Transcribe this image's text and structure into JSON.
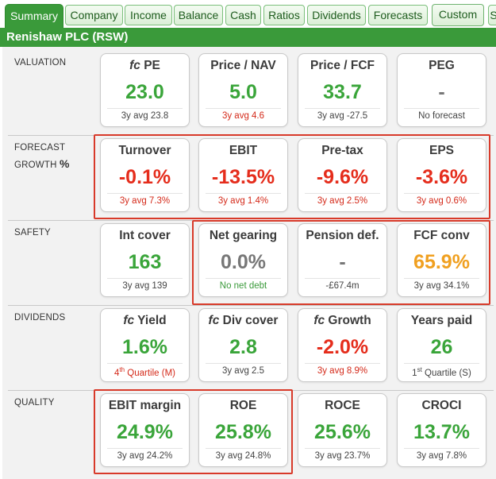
{
  "tabs": [
    "Summary",
    "Company",
    "Income",
    "Balance",
    "Cash",
    "Ratios",
    "Dividends",
    "Forecasts",
    "Custom",
    "S"
  ],
  "active_tab": "Summary",
  "company_title": "Renishaw PLC (RSW)",
  "sections": {
    "valuation": {
      "label": "VALUATION",
      "cards": [
        {
          "prefix": "fc",
          "title": "PE",
          "value": "23.0",
          "sub": "3y avg 23.8"
        },
        {
          "title": "Price / NAV",
          "value": "5.0",
          "sub": "3y avg 4.6"
        },
        {
          "title": "Price / FCF",
          "value": "33.7",
          "sub": "3y avg -27.5"
        },
        {
          "title": "PEG",
          "value": "-",
          "sub": "No forecast"
        }
      ]
    },
    "forecast_growth": {
      "label_line1": "FORECAST",
      "label_line2": "GROWTH",
      "label_symbol": "%",
      "cards": [
        {
          "title": "Turnover",
          "value": "-0.1%",
          "sub": "3y avg 7.3%"
        },
        {
          "title": "EBIT",
          "value": "-13.5%",
          "sub": "3y avg 1.4%"
        },
        {
          "title": "Pre-tax",
          "value": "-9.6%",
          "sub": "3y avg 2.5%"
        },
        {
          "title": "EPS",
          "value": "-3.6%",
          "sub": "3y avg 0.6%"
        }
      ]
    },
    "safety": {
      "label": "SAFETY",
      "cards": [
        {
          "title": "Int cover",
          "value": "163",
          "sub": "3y avg 139"
        },
        {
          "title": "Net gearing",
          "value": "0.0%",
          "sub": "No net debt"
        },
        {
          "title": "Pension def.",
          "value": "-",
          "sub": "-£67.4m"
        },
        {
          "title": "FCF conv",
          "value": "65.9%",
          "sub": "3y avg 34.1%"
        }
      ]
    },
    "dividends": {
      "label": "DIVIDENDS",
      "cards": [
        {
          "prefix": "fc",
          "title": "Yield",
          "value": "1.6%",
          "sub_pre": "4",
          "sub_sup": "th",
          "sub_post": " Quartile (M)"
        },
        {
          "prefix": "fc",
          "title": "Div cover",
          "value": "2.8",
          "sub": "3y avg 2.5"
        },
        {
          "prefix": "fc",
          "title": "Growth",
          "value": "-2.0%",
          "sub": "3y avg 8.9%"
        },
        {
          "title": "Years paid",
          "value": "26",
          "sub_pre": "1",
          "sub_sup": "st",
          "sub_post": " Quartile (S)"
        }
      ]
    },
    "quality": {
      "label": "QUALITY",
      "cards": [
        {
          "title": "EBIT margin",
          "value": "24.9%",
          "sub": "3y avg 24.2%"
        },
        {
          "title": "ROE",
          "value": "25.8%",
          "sub": "3y avg 24.8%"
        },
        {
          "title": "ROCE",
          "value": "25.6%",
          "sub": "3y avg 23.7%"
        },
        {
          "title": "CROCI",
          "value": "13.7%",
          "sub": "3y avg 7.8%"
        }
      ]
    }
  },
  "colors": {
    "positive": "#3aa53a",
    "negative": "#e52d1c",
    "neutral": "#777777",
    "warning": "#f0a020",
    "highlight_box": "#d83a2a",
    "title_bar": "#3a9a3a"
  }
}
